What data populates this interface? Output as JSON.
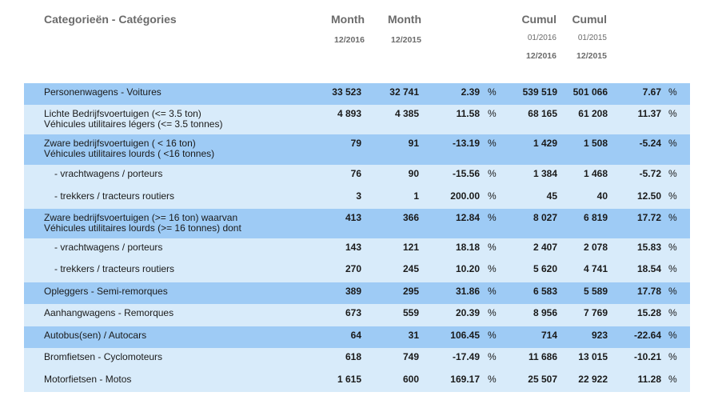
{
  "header": {
    "category": "Categorieën - Catégories",
    "month1": {
      "label": "Month",
      "period": "12/2016"
    },
    "month2": {
      "label": "Month",
      "period": "12/2015"
    },
    "cumul1": {
      "label": "Cumul",
      "from": "01/2016",
      "to": "12/2016"
    },
    "cumul2": {
      "label": "Cumul",
      "from": "01/2015",
      "to": "12/2015"
    }
  },
  "rows": [
    {
      "label1": "Personenwagens - Voitures",
      "label2": "",
      "m1": "33 523",
      "m2": "32 741",
      "diff": "2.39",
      "pct": "%",
      "cu1": "539 519",
      "cu2": "501 066",
      "cdiff": "7.67",
      "cpct": "%"
    },
    {
      "label1": "Lichte Bedrijfsvoertuigen (<= 3.5 ton)",
      "label2": "Véhicules utilitaires légers (<= 3.5 tonnes)",
      "m1": "4 893",
      "m2": "4 385",
      "diff": "11.58",
      "pct": "%",
      "cu1": "68 165",
      "cu2": "61 208",
      "cdiff": "11.37",
      "cpct": "%"
    },
    {
      "label1": "Zware bedrijfsvoertuigen ( < 16 ton)",
      "label2": "Véhicules utilitaires lourds ( <16 tonnes)",
      "m1": "79",
      "m2": "91",
      "diff": "-13.19",
      "pct": "%",
      "cu1": "1 429",
      "cu2": "1 508",
      "cdiff": "-5.24",
      "cpct": "%"
    },
    {
      "label1": "- vrachtwagens / porteurs",
      "label2": "",
      "m1": "76",
      "m2": "90",
      "diff": "-15.56",
      "pct": "%",
      "cu1": "1 384",
      "cu2": "1 468",
      "cdiff": "-5.72",
      "cpct": "%"
    },
    {
      "label1": "- trekkers / tracteurs routiers",
      "label2": "",
      "m1": "3",
      "m2": "1",
      "diff": "200.00",
      "pct": "%",
      "cu1": "45",
      "cu2": "40",
      "cdiff": "12.50",
      "cpct": "%"
    },
    {
      "label1": "Zware bedrijfsvoertuigen (>= 16 ton) waarvan",
      "label2": "Véhicules utilitaires lourds (>= 16 tonnes) dont",
      "m1": "413",
      "m2": "366",
      "diff": "12.84",
      "pct": "%",
      "cu1": "8 027",
      "cu2": "6 819",
      "cdiff": "17.72",
      "cpct": "%"
    },
    {
      "label1": "- vrachtwagens / porteurs",
      "label2": "",
      "m1": "143",
      "m2": "121",
      "diff": "18.18",
      "pct": "%",
      "cu1": "2 407",
      "cu2": "2 078",
      "cdiff": "15.83",
      "cpct": "%"
    },
    {
      "label1": "- trekkers / tracteurs routiers",
      "label2": "",
      "m1": "270",
      "m2": "245",
      "diff": "10.20",
      "pct": "%",
      "cu1": "5 620",
      "cu2": "4 741",
      "cdiff": "18.54",
      "cpct": "%"
    },
    {
      "label1": "Opleggers - Semi-remorques",
      "label2": "",
      "m1": "389",
      "m2": "295",
      "diff": "31.86",
      "pct": "%",
      "cu1": "6 583",
      "cu2": "5 589",
      "cdiff": "17.78",
      "cpct": "%"
    },
    {
      "label1": "Aanhangwagens - Remorques",
      "label2": "",
      "m1": "673",
      "m2": "559",
      "diff": "20.39",
      "pct": "%",
      "cu1": "8 956",
      "cu2": "7 769",
      "cdiff": "15.28",
      "cpct": "%"
    },
    {
      "label1": "Autobus(sen) / Autocars",
      "label2": "",
      "m1": "64",
      "m2": "31",
      "diff": "106.45",
      "pct": "%",
      "cu1": "714",
      "cu2": "923",
      "cdiff": "-22.64",
      "cpct": "%"
    },
    {
      "label1": "Bromfietsen - Cyclomoteurs",
      "label2": "",
      "m1": "618",
      "m2": "749",
      "diff": "-17.49",
      "pct": "%",
      "cu1": "11 686",
      "cu2": "13 015",
      "cdiff": "-10.21",
      "cpct": "%"
    },
    {
      "label1": "Motorfietsen - Motos",
      "label2": "",
      "m1": "1 615",
      "m2": "600",
      "diff": "169.17",
      "pct": "%",
      "cu1": "25 507",
      "cu2": "22 922",
      "cdiff": "11.28",
      "cpct": "%"
    }
  ]
}
